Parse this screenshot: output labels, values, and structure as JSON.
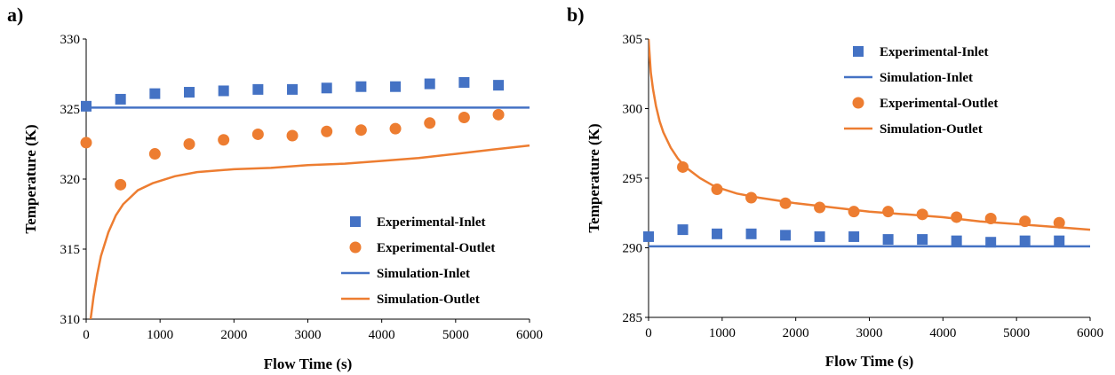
{
  "chart_data": [
    {
      "panel_label": "a)",
      "type": "scatter",
      "xlabel": "Flow Time (s)",
      "ylabel": "Temperature (K)",
      "xlim": [
        0,
        6000
      ],
      "ylim": [
        310,
        330
      ],
      "x_ticks": [
        "0",
        "1000",
        "2000",
        "3000",
        "4000",
        "5000",
        "6000"
      ],
      "y_ticks": [
        "310",
        "315",
        "320",
        "325",
        "330"
      ],
      "grid": false,
      "legend_position": "bottom-right",
      "series": [
        {
          "name": "Experimental-Inlet",
          "kind": "marker",
          "marker": "square",
          "color": "#4472C4",
          "x": [
            0,
            465,
            930,
            1395,
            1860,
            2325,
            2790,
            3255,
            3720,
            4185,
            4650,
            5115,
            5580
          ],
          "y": [
            325.2,
            325.7,
            326.1,
            326.2,
            326.3,
            326.4,
            326.4,
            326.5,
            326.6,
            326.6,
            326.8,
            326.9,
            326.7
          ]
        },
        {
          "name": "Experimental-Outlet",
          "kind": "marker",
          "marker": "circle",
          "color": "#ED7D31",
          "x": [
            0,
            465,
            930,
            1395,
            1860,
            2325,
            2790,
            3255,
            3720,
            4185,
            4650,
            5115,
            5580
          ],
          "y": [
            322.6,
            319.6,
            321.8,
            322.5,
            322.8,
            323.2,
            323.1,
            323.4,
            323.5,
            323.6,
            324.0,
            324.4,
            324.6
          ]
        },
        {
          "name": "Simulation-Inlet",
          "kind": "line",
          "color": "#4472C4",
          "x": [
            0,
            6000
          ],
          "y": [
            325.1,
            325.1
          ]
        },
        {
          "name": "Simulation-Outlet",
          "kind": "line",
          "color": "#ED7D31",
          "x": [
            60,
            100,
            150,
            200,
            300,
            400,
            500,
            700,
            900,
            1200,
            1500,
            2000,
            2500,
            3000,
            3500,
            4000,
            4500,
            5000,
            5500,
            6000
          ],
          "y": [
            310.0,
            311.6,
            313.2,
            314.5,
            316.2,
            317.4,
            318.2,
            319.2,
            319.7,
            320.2,
            320.5,
            320.7,
            320.8,
            321.0,
            321.1,
            321.3,
            321.5,
            321.8,
            322.1,
            322.4
          ]
        }
      ]
    },
    {
      "panel_label": "b)",
      "type": "scatter",
      "xlabel": "Flow Time (s)",
      "ylabel": "Temperature (K)",
      "xlim": [
        0,
        6000
      ],
      "ylim": [
        285,
        305
      ],
      "x_ticks": [
        "0",
        "1000",
        "2000",
        "3000",
        "4000",
        "5000",
        "6000"
      ],
      "y_ticks": [
        "285",
        "290",
        "295",
        "300",
        "305"
      ],
      "grid": false,
      "legend_position": "top-right",
      "series": [
        {
          "name": "Experimental-Inlet",
          "kind": "marker",
          "marker": "square",
          "color": "#4472C4",
          "x": [
            0,
            465,
            930,
            1395,
            1860,
            2325,
            2790,
            3255,
            3720,
            4185,
            4650,
            5115,
            5580
          ],
          "y": [
            290.8,
            291.3,
            291.0,
            291.0,
            290.9,
            290.8,
            290.8,
            290.6,
            290.6,
            290.5,
            290.4,
            290.5,
            290.5
          ]
        },
        {
          "name": "Simulation-Inlet",
          "kind": "line",
          "color": "#4472C4",
          "x": [
            0,
            6000
          ],
          "y": [
            290.1,
            290.1
          ]
        },
        {
          "name": "Experimental-Outlet",
          "kind": "marker",
          "marker": "circle",
          "color": "#ED7D31",
          "x": [
            465,
            930,
            1395,
            1860,
            2325,
            2790,
            3255,
            3720,
            4185,
            4650,
            5115,
            5580
          ],
          "y": [
            295.8,
            294.2,
            293.6,
            293.2,
            292.9,
            292.6,
            292.6,
            292.4,
            292.2,
            292.1,
            291.9,
            291.8
          ]
        },
        {
          "name": "Simulation-Outlet",
          "kind": "line",
          "color": "#ED7D31",
          "x": [
            0,
            30,
            60,
            100,
            150,
            200,
            300,
            400,
            500,
            700,
            900,
            1200,
            1500,
            2000,
            2500,
            3000,
            3500,
            4000,
            4500,
            5000,
            5500,
            6000
          ],
          "y": [
            305.0,
            302.6,
            301.4,
            300.2,
            299.1,
            298.3,
            297.2,
            296.4,
            295.8,
            295.0,
            294.4,
            293.9,
            293.6,
            293.2,
            292.9,
            292.6,
            292.4,
            292.2,
            291.9,
            291.7,
            291.5,
            291.3
          ]
        }
      ]
    }
  ]
}
